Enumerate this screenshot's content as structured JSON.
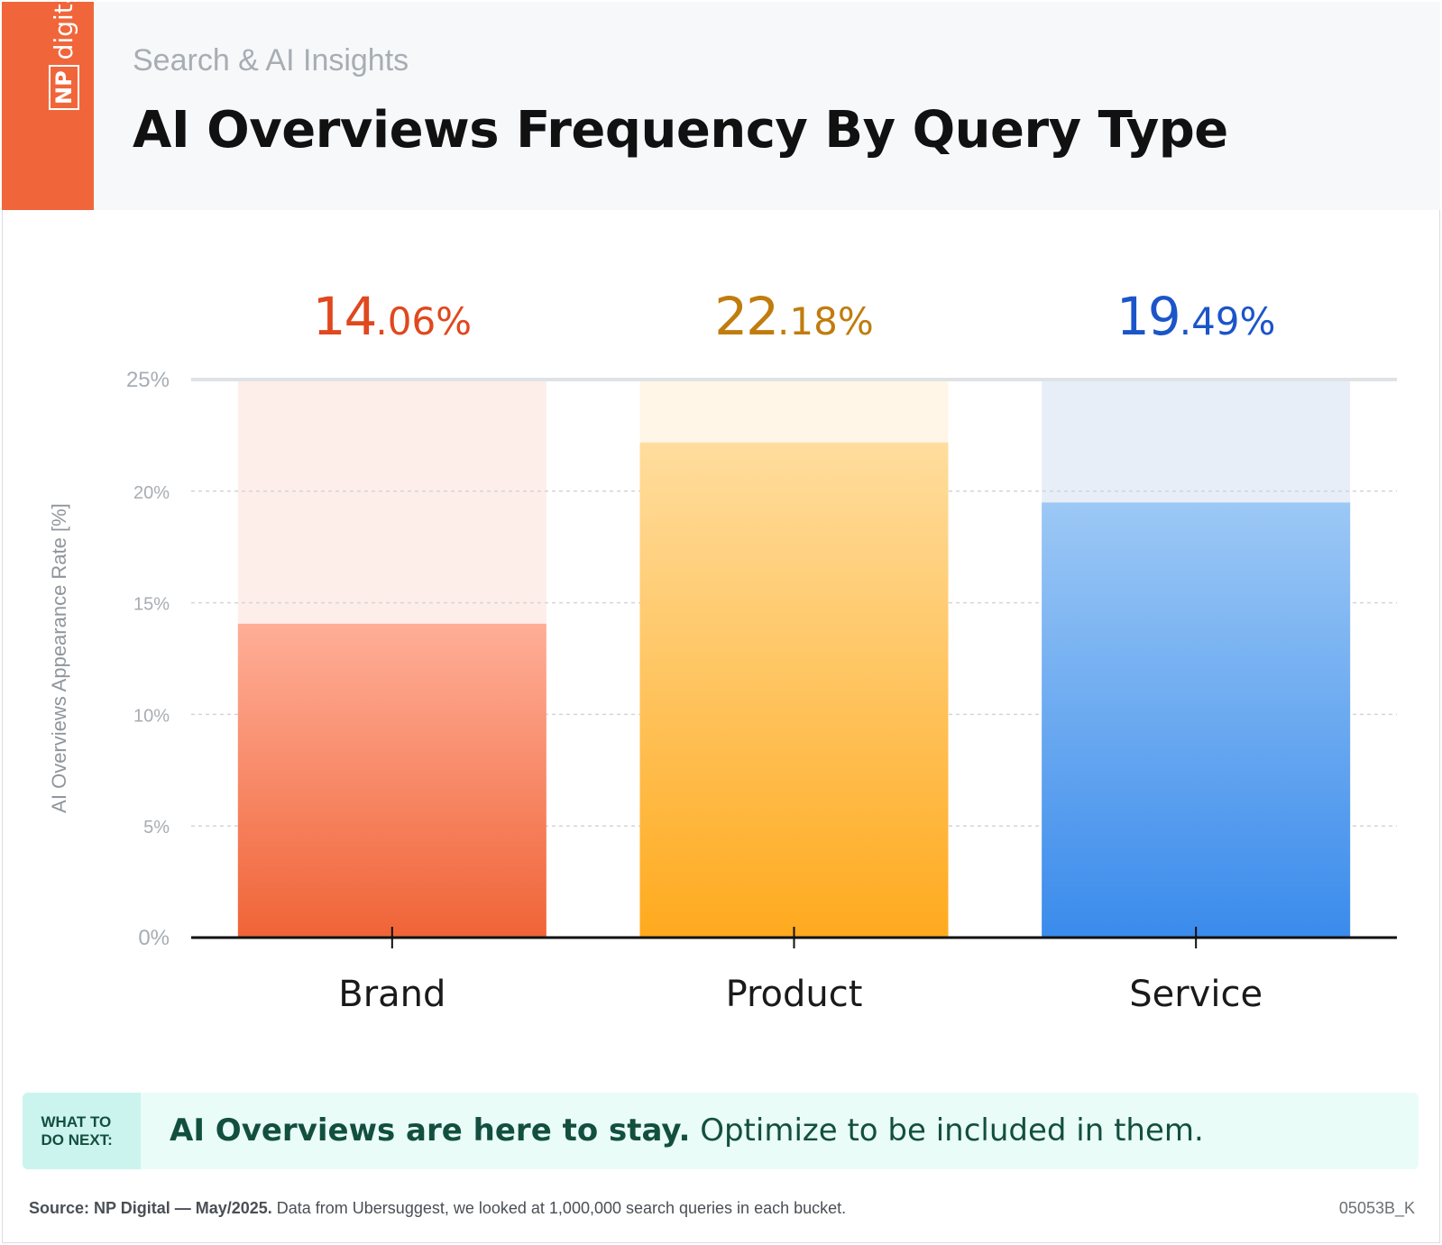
{
  "header": {
    "kicker": "Search & AI Insights",
    "title": "AI Overviews Frequency By Query Type",
    "logo_np": "NP",
    "logo_digital": "digital"
  },
  "chart_data": {
    "type": "bar",
    "categories": [
      "Brand",
      "Product",
      "Service"
    ],
    "values": [
      14.06,
      22.18,
      19.49
    ],
    "value_labels": [
      {
        "main": "14",
        "decimal": ".06%"
      },
      {
        "main": "22",
        "decimal": ".18%"
      },
      {
        "main": "19",
        "decimal": ".49%"
      }
    ],
    "ylabel": "AI Overviews Appearance Rate [%]",
    "ylim": [
      0,
      25
    ],
    "yticks": [
      "0%",
      "5%",
      "10%",
      "15%",
      "20%",
      "25%"
    ],
    "grid": true,
    "colors": {
      "Brand": {
        "bar_top": "#ffae98",
        "bar_bottom": "#f06437",
        "bg": "#fdeeea",
        "label": "#e0481e"
      },
      "Product": {
        "bar_top": "#ffdd9e",
        "bar_bottom": "#ffaa1e",
        "bg": "#fff6e8",
        "label": "#c17c0e"
      },
      "Service": {
        "bar_top": "#9cc8f5",
        "bar_bottom": "#3a8bec",
        "bg": "#e8eef7",
        "label": "#1b55c9"
      }
    }
  },
  "callout": {
    "tag": "WHAT TO\nDO NEXT:",
    "bold": "AI Overviews are here to stay.",
    "rest": " Optimize to be included in them."
  },
  "footer": {
    "source_bold": "Source: NP Digital — May/2025.",
    "source_rest": " Data from Ubersuggest, we looked at 1,000,000 search queries in each bucket.",
    "code": "05053B_K"
  }
}
